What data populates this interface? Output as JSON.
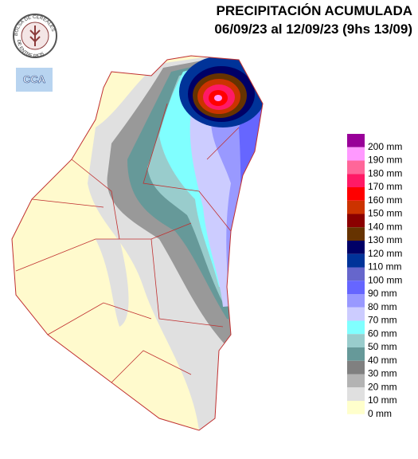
{
  "header": {
    "title": "PRECIPITACIÓN ACUMULADA",
    "subtitle": "06/09/23 al 12/09/23 (9hs 13/09)"
  },
  "logos": {
    "bolsa_top": "BOLSA DE CEREALES",
    "bolsa_bottom": "DE ENTRE RIOS",
    "cca": "CCA"
  },
  "legend": [
    {
      "label": "200 mm",
      "color": "#990099"
    },
    {
      "label": "190 mm",
      "color": "#ff99ff"
    },
    {
      "label": "180 mm",
      "color": "#ff6699"
    },
    {
      "label": "170 mm",
      "color": "#ff1a66"
    },
    {
      "label": "160 mm",
      "color": "#ff0000"
    },
    {
      "label": "150 mm",
      "color": "#cc3300"
    },
    {
      "label": "140 mm",
      "color": "#8b0000"
    },
    {
      "label": "130 mm",
      "color": "#663300"
    },
    {
      "label": "120 mm",
      "color": "#000066"
    },
    {
      "label": "110 mm",
      "color": "#003399"
    },
    {
      "label": "100 mm",
      "color": "#6666cc"
    },
    {
      "label": "90 mm",
      "color": "#6666ff"
    },
    {
      "label": "80 mm",
      "color": "#9999ff"
    },
    {
      "label": "70 mm",
      "color": "#ccccff"
    },
    {
      "label": "60 mm",
      "color": "#80ffff"
    },
    {
      "label": "50 mm",
      "color": "#99cccc"
    },
    {
      "label": "40 mm",
      "color": "#669999"
    },
    {
      "label": "30 mm",
      "color": "#808080"
    },
    {
      "label": "20 mm",
      "color": "#b3b3b3"
    },
    {
      "label": "10 mm",
      "color": "#e0e0e0"
    },
    {
      "label": "0 mm",
      "color": "#ffffcc"
    }
  ]
}
